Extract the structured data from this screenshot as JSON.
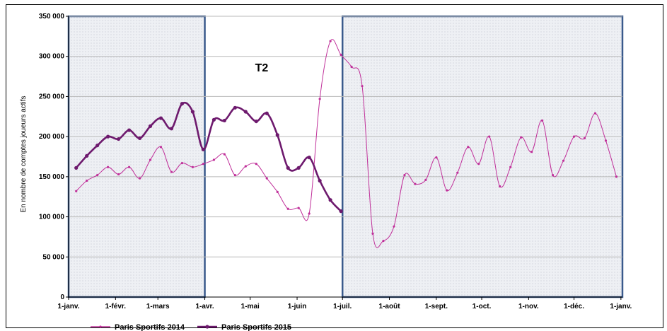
{
  "chart_data": {
    "type": "line",
    "title": "",
    "annotation": "T2",
    "ylabel": "En nombre de comptes joueurs actifs",
    "xlabel": "",
    "ylim": [
      0,
      350000
    ],
    "yticks": [
      0,
      50000,
      100000,
      150000,
      200000,
      250000,
      300000,
      350000
    ],
    "ytick_labels": [
      "0",
      "50 000",
      "100 000",
      "150 000",
      "200 000",
      "250 000",
      "300 000",
      "350 000"
    ],
    "xlim": [
      0,
      366
    ],
    "xticks": [
      0,
      31,
      59,
      90,
      120,
      151,
      181,
      212,
      243,
      273,
      304,
      334,
      365
    ],
    "xtick_labels": [
      "1-janv.",
      "1-févr.",
      "1-mars",
      "1-avr.",
      "1-mai",
      "1-juin",
      "1-juil.",
      "1-août",
      "1-sept.",
      "1-oct.",
      "1-nov.",
      "1-déc.",
      "1-janv."
    ],
    "grid": true,
    "legend_position": "bottom",
    "highlight_regions": [
      {
        "x_start": 0,
        "x_end": 90,
        "y_start": 0,
        "y_end": 350000
      },
      {
        "x_start": 181,
        "x_end": 366,
        "y_start": 0,
        "y_end": 350000
      }
    ],
    "series": [
      {
        "name": "Paris Sportifs 2014",
        "color": "#c0309a",
        "x": [
          5,
          12,
          19,
          26,
          33,
          40,
          47,
          54,
          61,
          68,
          75,
          82,
          89,
          96,
          103,
          110,
          117,
          124,
          131,
          138,
          145,
          152,
          159,
          166,
          173,
          180,
          187,
          194,
          201,
          208,
          215,
          222,
          229,
          236,
          243,
          250,
          257,
          264,
          271,
          278,
          285,
          292,
          299,
          306,
          313,
          320,
          327,
          334,
          341,
          348,
          355,
          362
        ],
        "y": [
          132000,
          145000,
          152000,
          162000,
          153000,
          162000,
          148000,
          171000,
          187000,
          156000,
          167000,
          162000,
          166000,
          171000,
          178000,
          152000,
          163000,
          166000,
          148000,
          131000,
          110000,
          111000,
          104000,
          247000,
          319000,
          302000,
          287000,
          263000,
          79000,
          70000,
          88000,
          152000,
          141000,
          146000,
          174000,
          133000,
          155000,
          187000,
          166000,
          200000,
          138000,
          162000,
          199000,
          181000,
          220000,
          152000,
          170000,
          200000,
          198000,
          229000,
          195000,
          150000
        ]
      },
      {
        "name": "Paris Sportifs 2015",
        "color": "#6e1a6e",
        "x": [
          5,
          12,
          19,
          26,
          33,
          40,
          47,
          54,
          61,
          68,
          75,
          82,
          89,
          96,
          103,
          110,
          117,
          124,
          131,
          138,
          145,
          152,
          159,
          166,
          173,
          180
        ],
        "y": [
          161000,
          176000,
          189000,
          200000,
          197000,
          208000,
          198000,
          213000,
          223000,
          210000,
          241000,
          231000,
          184000,
          221000,
          220000,
          236000,
          231000,
          219000,
          229000,
          202000,
          161000,
          161000,
          174000,
          145000,
          121000,
          107000
        ]
      }
    ]
  }
}
